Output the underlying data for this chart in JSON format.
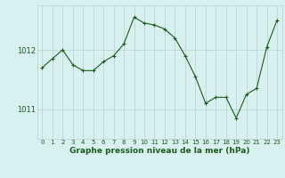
{
  "x": [
    0,
    1,
    2,
    3,
    4,
    5,
    6,
    7,
    8,
    9,
    10,
    11,
    12,
    13,
    14,
    15,
    16,
    17,
    18,
    19,
    20,
    21,
    22,
    23
  ],
  "y": [
    1011.7,
    1011.85,
    1012.0,
    1011.75,
    1011.65,
    1011.65,
    1011.8,
    1011.9,
    1012.1,
    1012.55,
    1012.45,
    1012.42,
    1012.35,
    1012.2,
    1011.9,
    1011.55,
    1011.1,
    1011.2,
    1011.2,
    1010.85,
    1011.25,
    1011.35,
    1012.05,
    1012.5
  ],
  "line_color": "#1a5c1a",
  "marker": "+",
  "marker_size": 3,
  "bg_color": "#d8f0f0",
  "grid_color": "#b8d0d0",
  "xlabel": "Graphe pression niveau de la mer (hPa)",
  "xlabel_fontsize": 6.5,
  "yticks": [
    1011,
    1012
  ],
  "ylim": [
    1010.5,
    1012.75
  ],
  "xlim": [
    -0.5,
    23.5
  ],
  "ax_label_color": "#1a5c1a",
  "tick_color": "#1a5c1a",
  "tick_fontsize": 5,
  "linewidth": 0.8,
  "markeredgewidth": 0.8
}
